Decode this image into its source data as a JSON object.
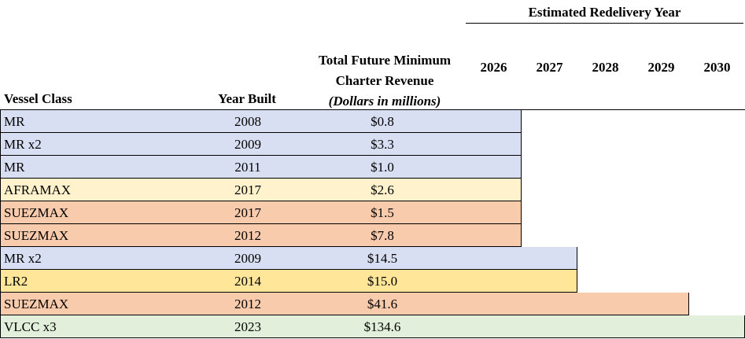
{
  "header": {
    "group_title": "Estimated Redelivery Year",
    "years": [
      "2026",
      "2027",
      "2028",
      "2029",
      "2030"
    ],
    "vessel_class": "Vessel Class",
    "year_built": "Year Built",
    "revenue_line1": "Total Future Minimum",
    "revenue_line2": "Charter Revenue",
    "revenue_units": "(Dollars in millions)"
  },
  "colors": {
    "MR": "#d9dff2",
    "AFRAMAX": "#fff2cc",
    "SUEZMAX": "#f8cbad",
    "LR2": "#ffe699",
    "VLCC": "#e2efda"
  },
  "rows": [
    {
      "vessel": "MR",
      "year_built": "2008",
      "revenue": "$0.8",
      "redelivery_year": "2026",
      "color": "#d9dff2"
    },
    {
      "vessel": "MR x2",
      "year_built": "2009",
      "revenue": "$3.3",
      "redelivery_year": "2026",
      "color": "#d9dff2"
    },
    {
      "vessel": "MR",
      "year_built": "2011",
      "revenue": "$1.0",
      "redelivery_year": "2026",
      "color": "#d9dff2"
    },
    {
      "vessel": "AFRAMAX",
      "year_built": "2017",
      "revenue": "$2.6",
      "redelivery_year": "2026",
      "color": "#fff2cc"
    },
    {
      "vessel": "SUEZMAX",
      "year_built": "2017",
      "revenue": "$1.5",
      "redelivery_year": "2026",
      "color": "#f8cbad"
    },
    {
      "vessel": "SUEZMAX",
      "year_built": "2012",
      "revenue": "$7.8",
      "redelivery_year": "2026",
      "color": "#f8cbad"
    },
    {
      "vessel": "MR x2",
      "year_built": "2009",
      "revenue": "$14.5",
      "redelivery_year": "2027",
      "color": "#d9dff2"
    },
    {
      "vessel": "LR2",
      "year_built": "2014",
      "revenue": "$15.0",
      "redelivery_year": "2027",
      "color": "#ffe699"
    },
    {
      "vessel": "SUEZMAX",
      "year_built": "2012",
      "revenue": "$41.6",
      "redelivery_year": "2029",
      "color": "#f8cbad"
    },
    {
      "vessel": "VLCC x3",
      "year_built": "2023",
      "revenue": "$134.6",
      "redelivery_year": "2030",
      "color": "#e2efda"
    }
  ]
}
